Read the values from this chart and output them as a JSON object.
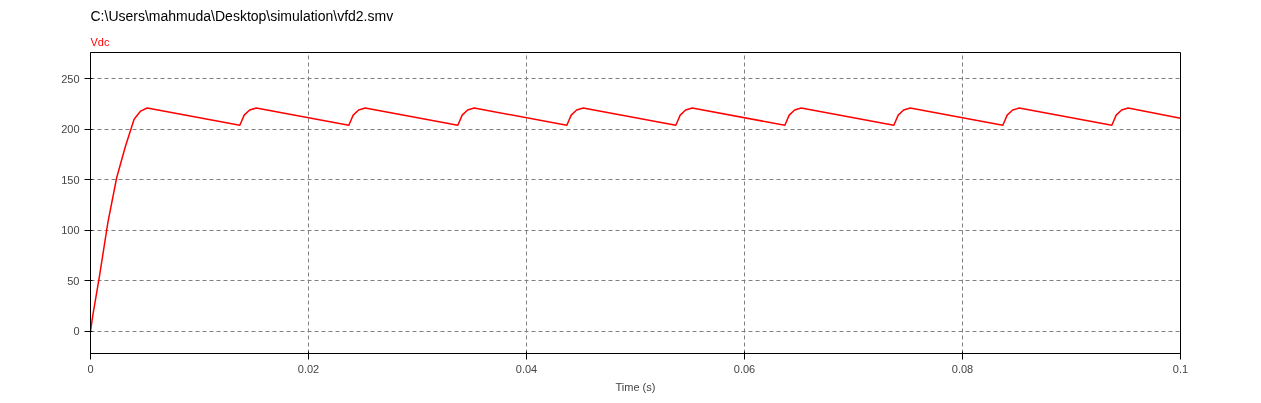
{
  "chart_data": {
    "type": "line",
    "title": "C:\\Users\\mahmuda\\Desktop\\simulation\\vfd2.smv",
    "xlabel": "Time (s)",
    "x": [
      0,
      0.0002,
      0.0008,
      0.0016,
      0.0024,
      0.0032,
      0.004,
      0.0046,
      0.0052,
      0.0137,
      0.0141,
      0.0146,
      0.0152,
      0.0237,
      0.0241,
      0.0246,
      0.0252,
      0.0337,
      0.0341,
      0.0346,
      0.0352,
      0.0437,
      0.0441,
      0.0446,
      0.0452,
      0.0537,
      0.0541,
      0.0546,
      0.0552,
      0.0637,
      0.0641,
      0.0646,
      0.0652,
      0.0737,
      0.0741,
      0.0746,
      0.0752,
      0.0837,
      0.0841,
      0.0846,
      0.0852,
      0.0937,
      0.0941,
      0.0946,
      0.0952,
      0.1
    ],
    "series": [
      {
        "name": "Vdc",
        "color": "#ff0000",
        "values": [
          0,
          15,
          53,
          108,
          152,
          183,
          210,
          218,
          221,
          204,
          214,
          219,
          221,
          204,
          214,
          219,
          221,
          204,
          214,
          219,
          221,
          204,
          214,
          219,
          221,
          204,
          214,
          219,
          221,
          204,
          214,
          219,
          221,
          204,
          214,
          219,
          221,
          204,
          214,
          219,
          221,
          204,
          214,
          219,
          221,
          211
        ]
      }
    ],
    "xlim": [
      0,
      0.1
    ],
    "ylim": [
      -22,
      276
    ],
    "xticks": [
      0,
      0.02,
      0.04,
      0.06,
      0.08,
      0.1
    ],
    "yticks": [
      0,
      50,
      100,
      150,
      200,
      250
    ],
    "grid": true,
    "line_style": "solid",
    "marker": "none"
  }
}
